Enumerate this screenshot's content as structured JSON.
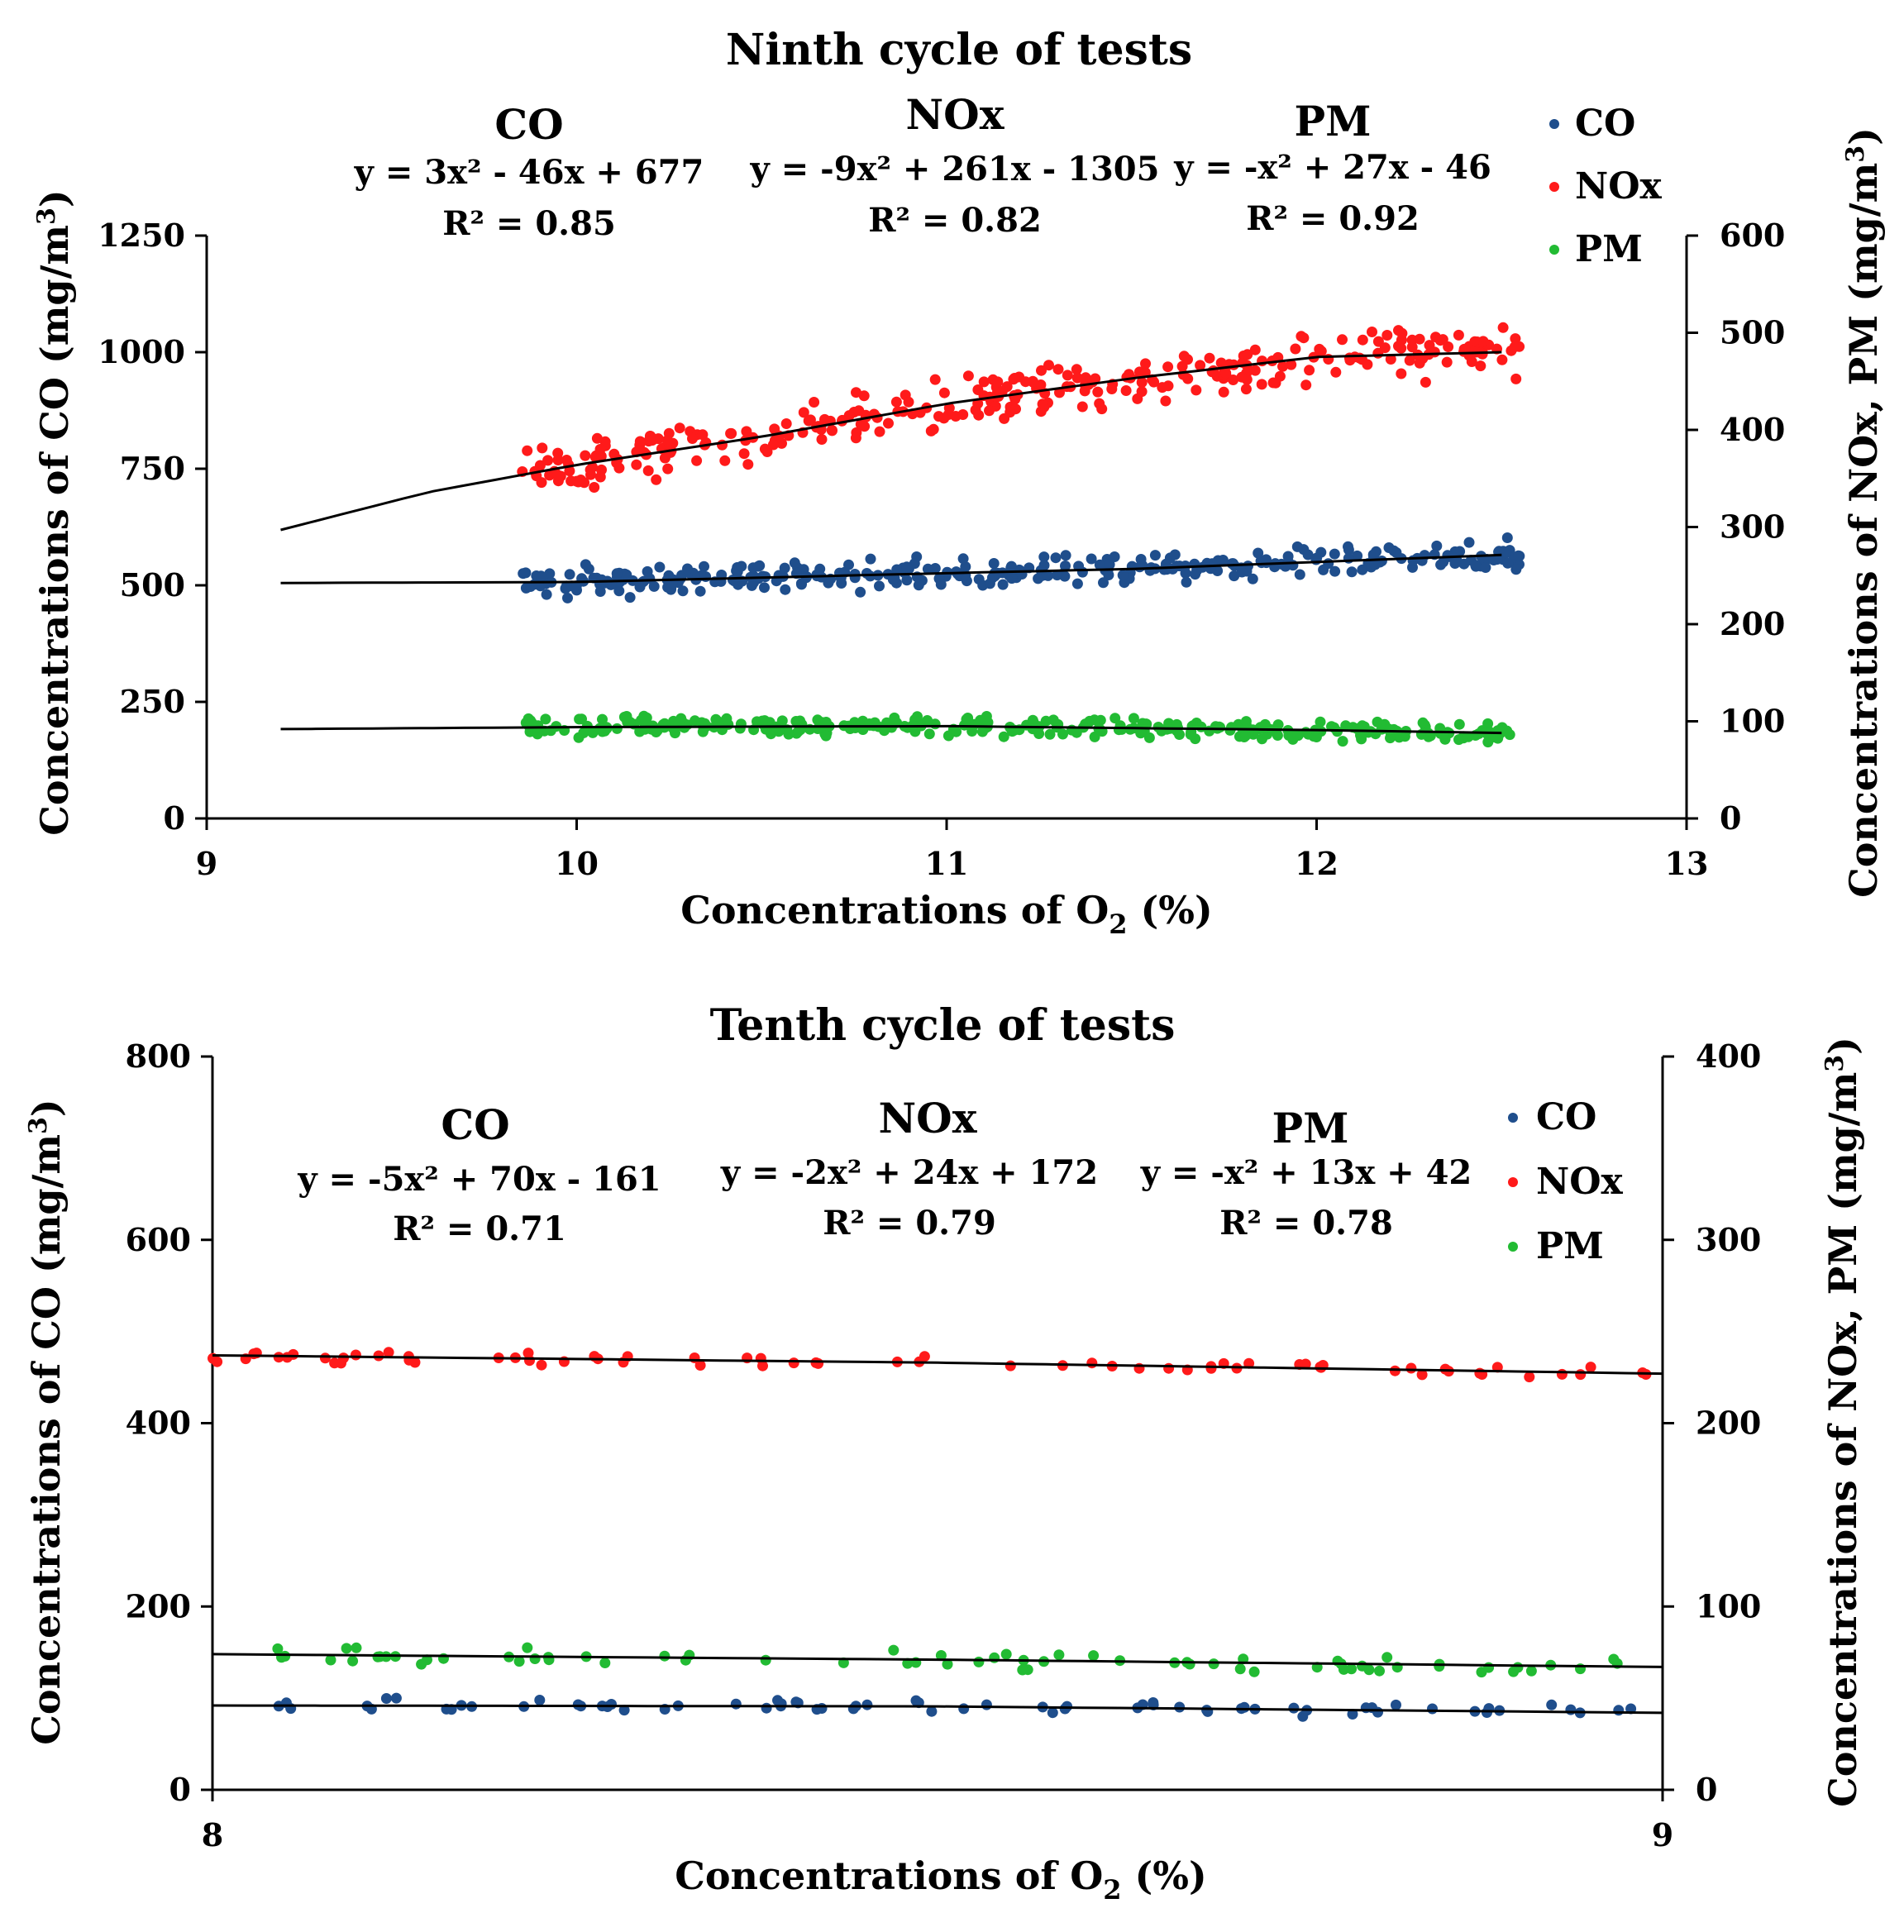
{
  "chart_data": [
    {
      "type": "scatter",
      "title": "Ninth cycle of tests",
      "xlabel": "Concentrations of O2 (%)",
      "ylabel": "Concentrations of CO (mg/m3)",
      "y2label": "Concentrations of NOx, PM (mg/m3)",
      "xlim": [
        9,
        13
      ],
      "ylim": [
        0,
        1250
      ],
      "y2lim": [
        0,
        600
      ],
      "xticks": [
        "9",
        "10",
        "11",
        "12",
        "13"
      ],
      "yticks": [
        "0",
        "250",
        "500",
        "750",
        "1000",
        "1250"
      ],
      "y2ticks": [
        "0",
        "100",
        "200",
        "300",
        "400",
        "500",
        "600"
      ],
      "x_range": [
        9.85,
        12.55
      ],
      "trend_x_range": [
        9.2,
        12.5
      ],
      "legend": [
        {
          "name": "CO",
          "color": "#1f4e8c"
        },
        {
          "name": "NOx",
          "color": "#ff1a1a"
        },
        {
          "name": "PM",
          "color": "#22bb33"
        }
      ],
      "legend_position": "top-right",
      "equations": [
        {
          "name": "CO",
          "equation": "y = 3x² - 46x + 677",
          "r2": "R² = 0.85"
        },
        {
          "name": "NOx",
          "equation": "y = -9x² + 261x - 1305",
          "r2": "R² = 0.82"
        },
        {
          "name": "PM",
          "equation": "y = -x² + 27x - 46",
          "r2": "R² = 0.92"
        }
      ],
      "series": [
        {
          "name": "CO",
          "axis": "left",
          "color": "#1f4e8c",
          "n": 330,
          "spread": 38,
          "trend": [
            [
              9.2,
              505
            ],
            [
              10.0,
              507
            ],
            [
              11.0,
              526
            ],
            [
              11.5,
              535
            ],
            [
              12.0,
              550
            ],
            [
              12.5,
              565
            ]
          ]
        },
        {
          "name": "NOx",
          "axis": "right",
          "color": "#ff1a1a",
          "n": 330,
          "spread": 30,
          "trend": [
            [
              9.2,
              297
            ],
            [
              9.6,
              336
            ],
            [
              10.0,
              364
            ],
            [
              10.5,
              393
            ],
            [
              11.0,
              427
            ],
            [
              11.5,
              453
            ],
            [
              12.0,
              475
            ],
            [
              12.5,
              480
            ]
          ]
        },
        {
          "name": "PM",
          "axis": "right",
          "color": "#22bb33",
          "n": 330,
          "spread": 12,
          "trend": [
            [
              9.2,
              92
            ],
            [
              10.0,
              94
            ],
            [
              11.0,
              95
            ],
            [
              11.5,
              93
            ],
            [
              12.0,
              91
            ],
            [
              12.5,
              88
            ]
          ]
        }
      ]
    },
    {
      "type": "scatter",
      "title": "Tenth cycle of  tests",
      "xlabel": "Concentrations of O2 (%)",
      "ylabel": "Concentrations of CO (mg/m3)",
      "y2label": "Concentrations of NOx, PM (mg/m3)",
      "xlim": [
        8,
        9
      ],
      "ylim": [
        0,
        800
      ],
      "y2lim": [
        0,
        400
      ],
      "xticks": [
        "8",
        "9"
      ],
      "yticks": [
        "0",
        "200",
        "400",
        "600",
        "800"
      ],
      "y2ticks": [
        "0",
        "100",
        "200",
        "300",
        "400"
      ],
      "x_range": [
        8.0,
        9.0
      ],
      "trend_x_range": [
        8.0,
        9.0
      ],
      "legend": [
        {
          "name": "CO",
          "color": "#1f4e8c"
        },
        {
          "name": "NOx",
          "color": "#ff1a1a"
        },
        {
          "name": "PM",
          "color": "#22bb33"
        }
      ],
      "legend_position": "top-right",
      "equations": [
        {
          "name": "CO",
          "equation": "y = -5x² + 70x - 161",
          "r2": "R² = 0.71"
        },
        {
          "name": "NOx",
          "equation": "y = -2x² + 24x + 172",
          "r2": "R² = 0.79"
        },
        {
          "name": "PM",
          "equation": "y = -x² + 13x + 42",
          "r2": "R² = 0.78"
        }
      ],
      "series": [
        {
          "name": "CO",
          "axis": "left",
          "color": "#1f4e8c",
          "n": 70,
          "spread": 9,
          "trend": [
            [
              8.0,
              92
            ],
            [
              8.5,
              91
            ],
            [
              9.0,
              84
            ]
          ]
        },
        {
          "name": "NOx",
          "axis": "right",
          "color": "#ff1a1a",
          "n": 70,
          "spread": 4,
          "trend": [
            [
              8.0,
              237
            ],
            [
              8.5,
              233
            ],
            [
              9.0,
              227
            ]
          ]
        },
        {
          "name": "PM",
          "axis": "right",
          "color": "#22bb33",
          "n": 70,
          "spread": 6,
          "trend": [
            [
              8.0,
              74
            ],
            [
              8.5,
              71
            ],
            [
              9.0,
              67
            ]
          ]
        }
      ]
    }
  ]
}
